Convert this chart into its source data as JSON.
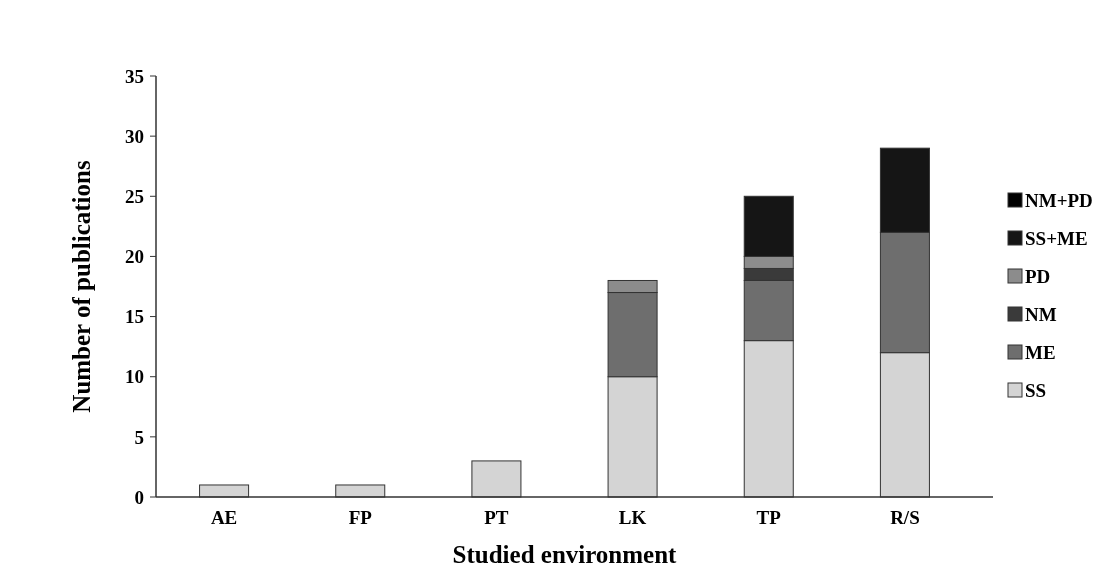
{
  "chart_data": {
    "type": "bar",
    "stacked": true,
    "xlabel": "Studied environment",
    "ylabel": "Number of publications",
    "categories": [
      "AE",
      "FP",
      "PT",
      "LK",
      "TP",
      "R/S"
    ],
    "series": [
      {
        "name": "SS",
        "color": "#d4d4d4",
        "values": [
          1,
          1,
          3,
          10,
          13,
          12
        ]
      },
      {
        "name": "ME",
        "color": "#6e6e6e",
        "values": [
          0,
          0,
          0,
          7,
          5,
          10
        ]
      },
      {
        "name": "NM",
        "color": "#3a3a3a",
        "values": [
          0,
          0,
          0,
          0,
          1,
          0
        ]
      },
      {
        "name": "PD",
        "color": "#8c8c8c",
        "values": [
          0,
          0,
          0,
          1,
          1,
          0
        ]
      },
      {
        "name": "SS+ME",
        "color": "#151515",
        "values": [
          0,
          0,
          0,
          0,
          5,
          7
        ]
      },
      {
        "name": "NM+PD",
        "color": "#000000",
        "values": [
          0,
          0,
          0,
          0,
          0,
          0
        ]
      }
    ],
    "ylim": [
      0,
      35
    ],
    "yticks": [
      0,
      5,
      10,
      15,
      20,
      25,
      30,
      35
    ],
    "grid": false,
    "legend": "right"
  }
}
